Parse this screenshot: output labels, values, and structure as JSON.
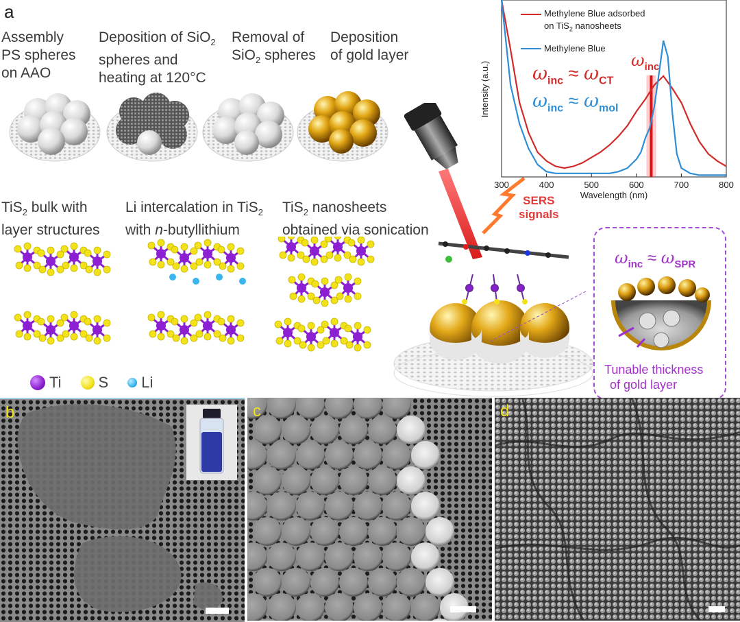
{
  "panel_a": {
    "letter": "a",
    "steps": [
      "Assembly PS spheres on AAO",
      "Deposition of SiO2 spheres and heating at 120°C",
      "Removal of SiO2 spheres",
      "Deposition of gold layer"
    ],
    "steps_lines": [
      [
        "Assembly",
        "PS spheres",
        "on AAO"
      ],
      [
        "Deposition of SiO",
        "spheres and",
        "heating at 120°C"
      ],
      [
        "Removal of",
        "SiO",
        "spheres"
      ],
      [
        "Deposition",
        "of gold layer"
      ]
    ],
    "sub2": "2",
    "tis2_lines": [
      [
        "TiS",
        " bulk with",
        " layer structures"
      ],
      [
        "Li intercalation in TiS",
        "with ",
        "n",
        "-butyllithium"
      ],
      [
        "TiS",
        " nanosheets",
        "obtained via sonication"
      ]
    ],
    "legend": [
      {
        "symbol": "Ti",
        "color": "#8b1fd1"
      },
      {
        "symbol": "S",
        "color": "#f2e21a"
      },
      {
        "symbol": "Li",
        "color": "#3ab6ee"
      }
    ],
    "sers_label": [
      "SERS",
      "signals"
    ],
    "spr_box": {
      "omega": "ω",
      "inc": "inc",
      "approx": "≈",
      "spr": "SPR",
      "caption": [
        "Tunable thickness",
        "of gold layer"
      ]
    }
  },
  "chart_data": {
    "type": "line",
    "xlabel": "Wavelength (nm)",
    "ylabel": "Intensity (a.u.)",
    "xlim": [
      300,
      800
    ],
    "xticks": [
      300,
      400,
      500,
      600,
      700,
      800
    ],
    "ylim": [
      0,
      1
    ],
    "series": [
      {
        "name": "Methylene Blue adsorbed on TiS2 nanosheets",
        "color": "#d22b2b",
        "x": [
          300,
          320,
          340,
          360,
          380,
          400,
          420,
          440,
          460,
          480,
          500,
          520,
          540,
          560,
          580,
          600,
          620,
          640,
          660,
          680,
          700,
          720,
          740,
          760,
          780,
          800
        ],
        "y": [
          1.05,
          0.72,
          0.42,
          0.25,
          0.14,
          0.09,
          0.06,
          0.05,
          0.06,
          0.08,
          0.11,
          0.14,
          0.18,
          0.23,
          0.29,
          0.37,
          0.44,
          0.52,
          0.57,
          0.5,
          0.42,
          0.3,
          0.2,
          0.13,
          0.09,
          0.06
        ]
      },
      {
        "name": "Methylene Blue",
        "color": "#2e8ed6",
        "x": [
          300,
          320,
          340,
          360,
          380,
          400,
          420,
          440,
          460,
          480,
          500,
          520,
          540,
          560,
          580,
          600,
          610,
          620,
          630,
          640,
          650,
          660,
          670,
          680,
          690,
          700,
          720,
          740,
          760,
          780,
          800
        ],
        "y": [
          1.05,
          0.52,
          0.3,
          0.16,
          0.07,
          0.03,
          0.02,
          0.02,
          0.02,
          0.02,
          0.02,
          0.02,
          0.02,
          0.03,
          0.05,
          0.1,
          0.14,
          0.22,
          0.28,
          0.4,
          0.58,
          0.77,
          0.68,
          0.36,
          0.13,
          0.05,
          0.02,
          0.01,
          0.01,
          0.01,
          0.01
        ]
      }
    ],
    "legend": [
      {
        "line1": "Methylene Blue adsorbed",
        "line2": "on TiS",
        "sub": "2",
        "tail": " nanosheets"
      },
      {
        "line1": "Methylene Blue"
      }
    ],
    "annotations": {
      "omega_inc": "ω",
      "inc": "inc",
      "ct_eq": {
        "left": "ω",
        "left_sub": "inc",
        "approx": " ≈ ",
        "right": "ω",
        "right_sub": "CT"
      },
      "mol_eq": {
        "left": "ω",
        "left_sub": "inc",
        "approx": " ≈ ",
        "right": "ω",
        "right_sub": "mol"
      }
    },
    "excitation_wavelength": 633
  },
  "sem_panels": [
    {
      "letter": "b"
    },
    {
      "letter": "c"
    },
    {
      "letter": "d"
    }
  ]
}
